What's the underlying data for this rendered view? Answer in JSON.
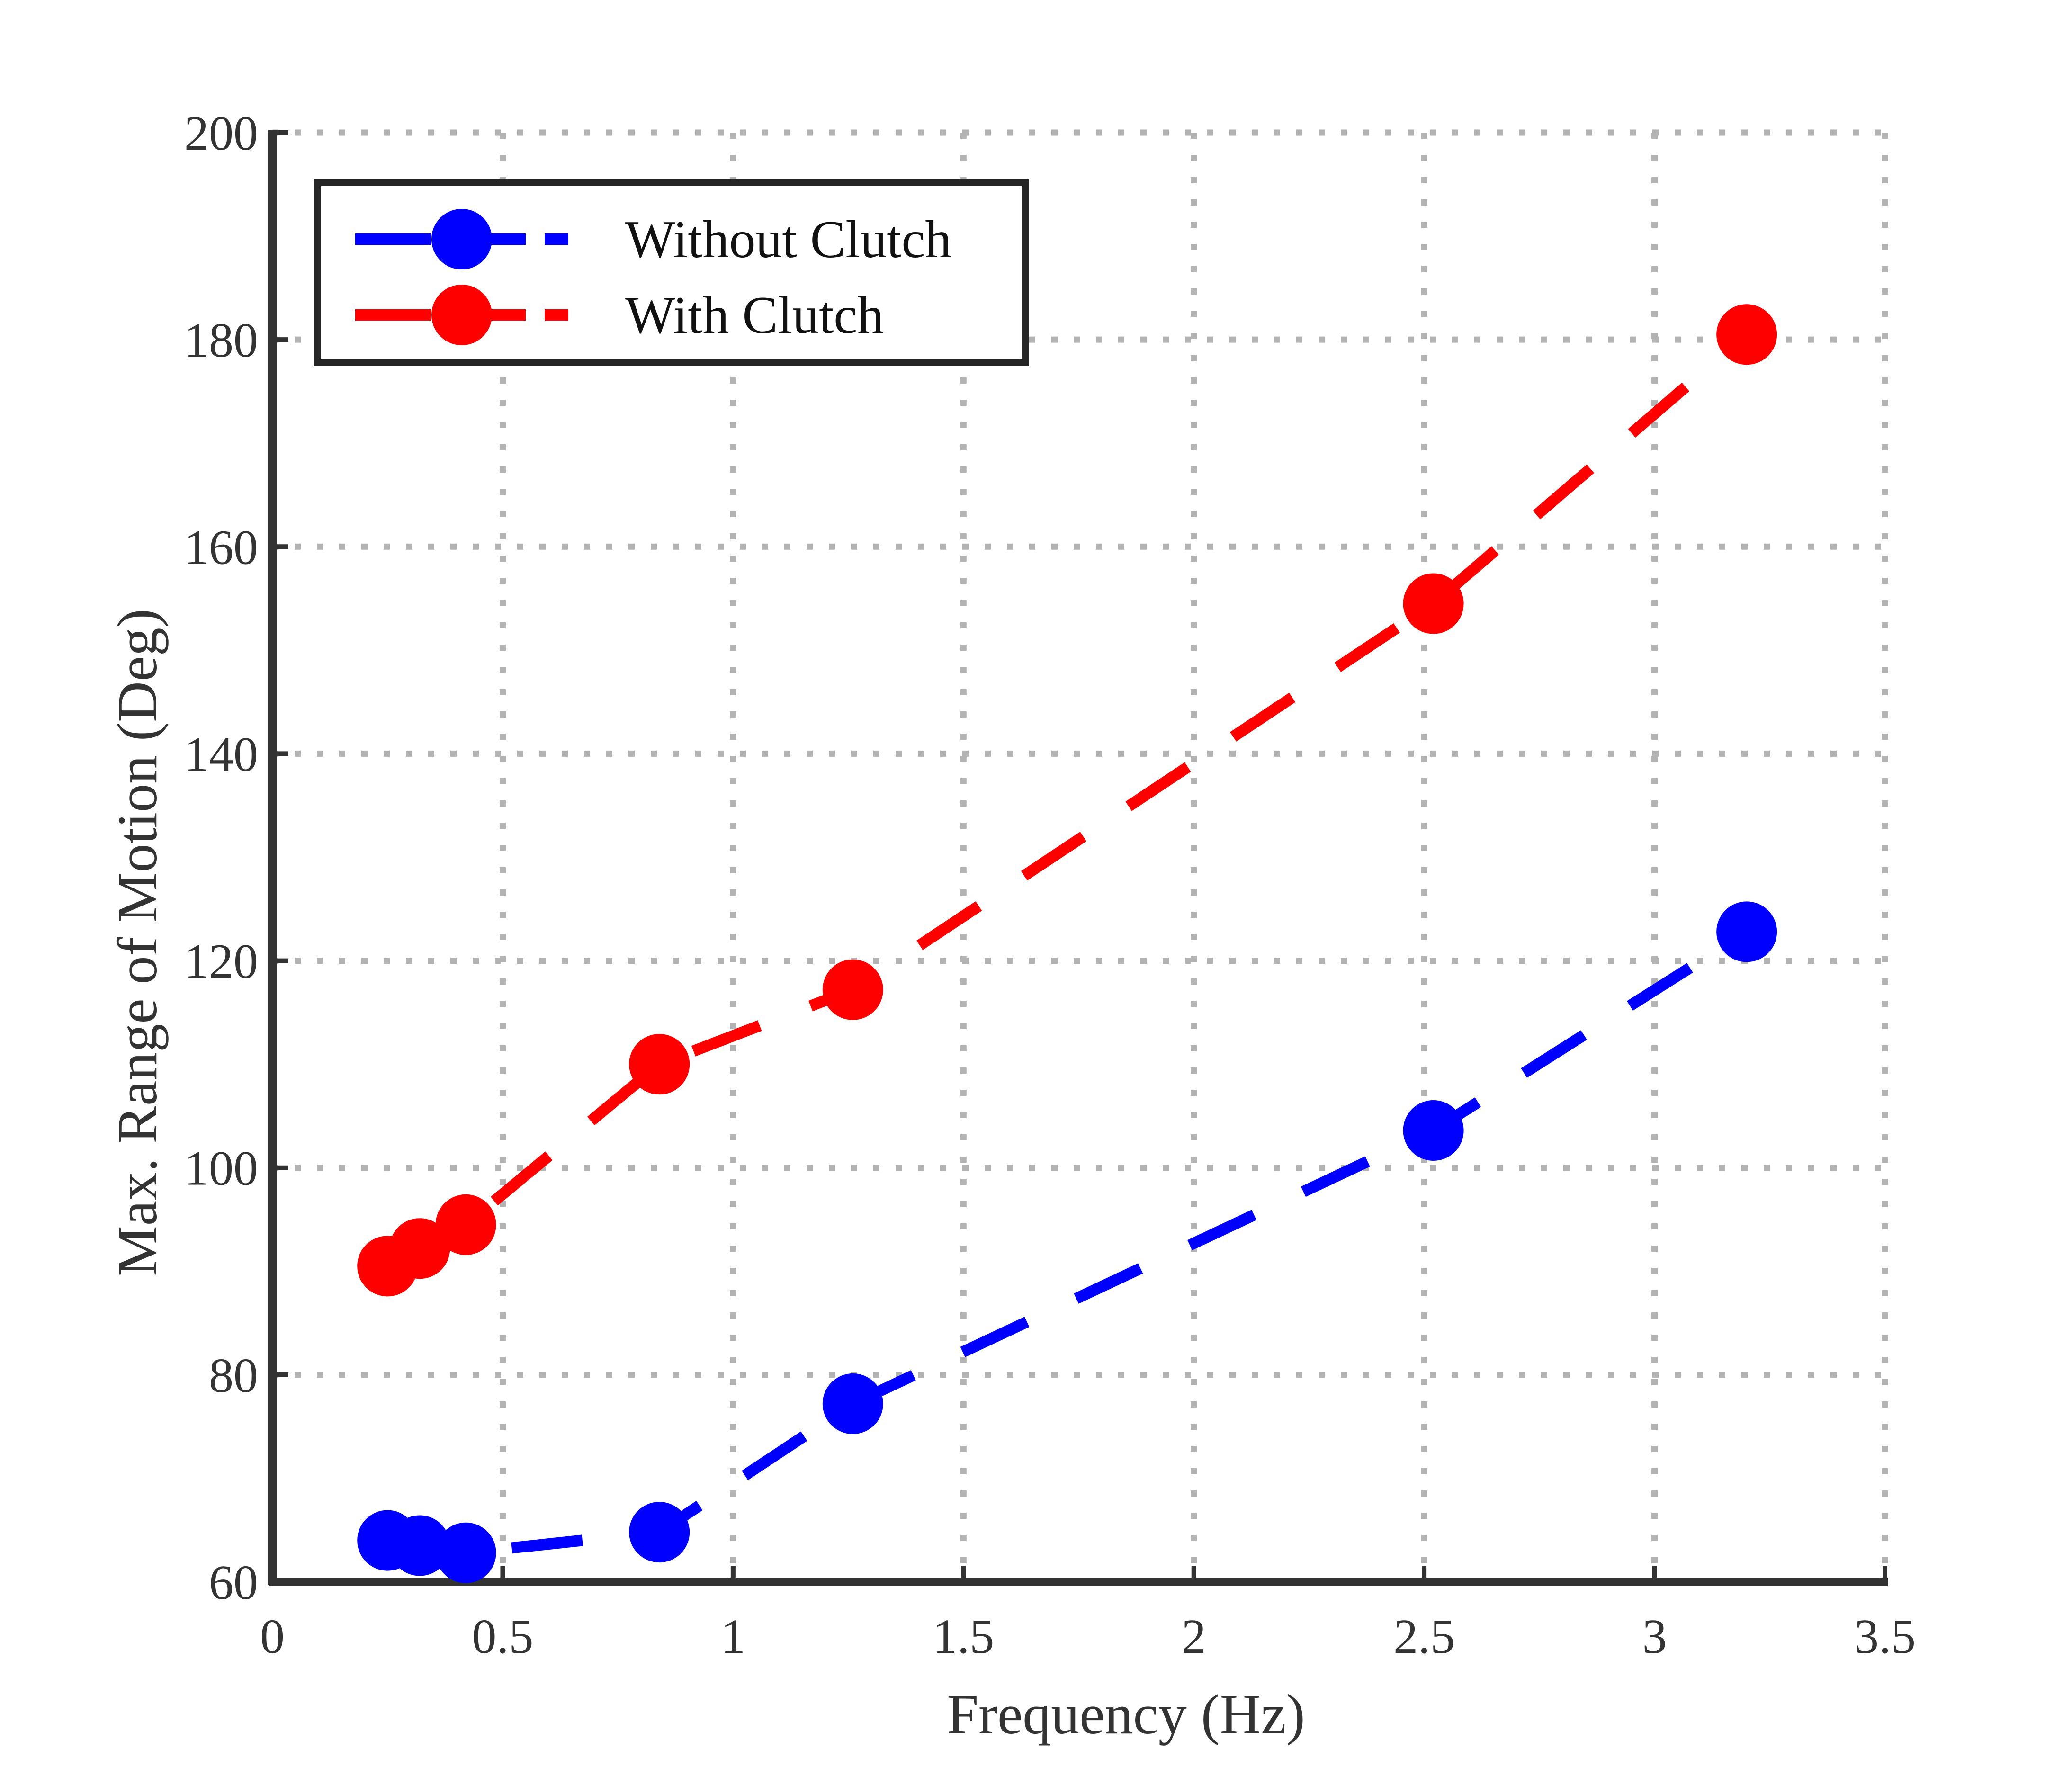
{
  "chart_data": {
    "type": "line",
    "title": "",
    "xlabel": "Frequency (Hz)",
    "ylabel": "Max. Range of Motion (Deg)",
    "xlim": [
      0,
      3.5
    ],
    "ylim": [
      60,
      200
    ],
    "xticks": [
      "0",
      "0.5",
      "1",
      "1.5",
      "2",
      "2.5",
      "3",
      "3.5"
    ],
    "yticks": [
      "60",
      "80",
      "100",
      "120",
      "140",
      "160",
      "180",
      "200"
    ],
    "grid": true,
    "legend_position": "top-left",
    "series": [
      {
        "name": "Without Clutch",
        "color": "#0000ff",
        "line_style": "dashed",
        "marker": "circle",
        "x": [
          0.25,
          0.32,
          0.42,
          0.84,
          1.26,
          2.52,
          3.2
        ],
        "y": [
          64,
          63.5,
          62.8,
          64.8,
          77.2,
          103.6,
          122.8
        ]
      },
      {
        "name": "With Clutch",
        "color": "#ff0000",
        "line_style": "dashed",
        "marker": "circle",
        "x": [
          0.25,
          0.32,
          0.42,
          0.84,
          1.26,
          2.52,
          3.2
        ],
        "y": [
          90.5,
          92.2,
          94.5,
          110,
          117.2,
          154.5,
          180.5
        ]
      }
    ]
  }
}
